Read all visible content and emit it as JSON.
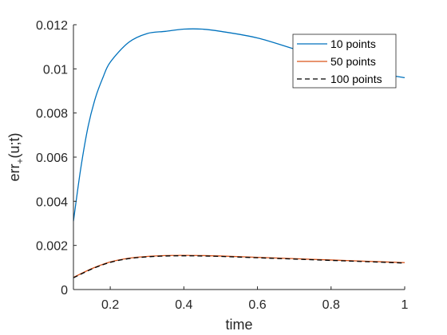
{
  "chart_data": {
    "type": "line",
    "xlabel": "time",
    "ylabel_main": "err",
    "ylabel_sub": "+",
    "ylabel_tail": "(u;t)",
    "xlim": [
      0.1,
      1.0
    ],
    "ylim": [
      0,
      0.012
    ],
    "xticks": [
      0.2,
      0.4,
      0.6,
      0.8,
      1.0
    ],
    "xtick_labels": [
      "0.2",
      "0.4",
      "0.6",
      "0.8",
      "1"
    ],
    "yticks": [
      0,
      0.002,
      0.004,
      0.006,
      0.008,
      0.01,
      0.012
    ],
    "ytick_labels": [
      "0",
      "0.002",
      "0.004",
      "0.006",
      "0.008",
      "0.01",
      "0.012"
    ],
    "grid": false,
    "legend_position": "top-right",
    "series": [
      {
        "name": "10 points",
        "color": "#0072BD",
        "dash": "solid",
        "x": [
          0.1,
          0.12,
          0.14,
          0.16,
          0.18,
          0.2,
          0.25,
          0.3,
          0.35,
          0.4,
          0.45,
          0.5,
          0.6,
          0.7,
          0.8,
          0.9,
          1.0
        ],
        "y": [
          0.0031,
          0.0055,
          0.0074,
          0.0087,
          0.0096,
          0.0103,
          0.0112,
          0.0116,
          0.0117,
          0.0118,
          0.0118,
          0.0117,
          0.0114,
          0.0109,
          0.0104,
          0.0099,
          0.0096
        ]
      },
      {
        "name": "50 points",
        "color": "#D95319",
        "dash": "solid",
        "x": [
          0.1,
          0.15,
          0.2,
          0.25,
          0.3,
          0.35,
          0.4,
          0.45,
          0.5,
          0.6,
          0.7,
          0.8,
          0.9,
          1.0
        ],
        "y": [
          0.00055,
          0.00095,
          0.00125,
          0.00142,
          0.0015,
          0.00154,
          0.00155,
          0.00154,
          0.00152,
          0.00146,
          0.0014,
          0.00134,
          0.00128,
          0.00122
        ]
      },
      {
        "name": "100 points",
        "color": "#000000",
        "dash": "dashed",
        "x": [
          0.1,
          0.15,
          0.2,
          0.25,
          0.3,
          0.35,
          0.4,
          0.45,
          0.5,
          0.6,
          0.7,
          0.8,
          0.9,
          1.0
        ],
        "y": [
          0.00053,
          0.00093,
          0.00123,
          0.0014,
          0.00148,
          0.00152,
          0.00153,
          0.00152,
          0.0015,
          0.00144,
          0.00138,
          0.00132,
          0.00126,
          0.0012
        ]
      }
    ]
  }
}
